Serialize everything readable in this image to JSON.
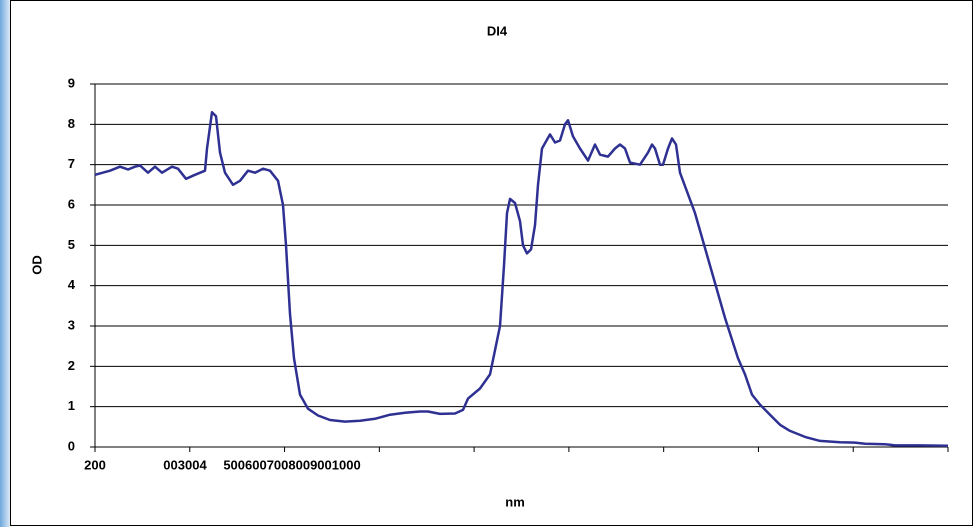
{
  "chart_data": {
    "type": "line",
    "title": "DI4",
    "x_label": "nm",
    "y_label": "OD",
    "x_labels": [
      "200",
      "003004",
      "5006007008009001000"
    ],
    "xlim": [
      0,
      853
    ],
    "ylim": [
      0,
      9
    ],
    "yticks": [
      0,
      1,
      2,
      3,
      4,
      5,
      6,
      7,
      8,
      9
    ],
    "grid": true,
    "series": [
      {
        "color": "#2e3192",
        "x": [
          0,
          15,
          25,
          33,
          40,
          45,
          53,
          60,
          67,
          77,
          83,
          91,
          100,
          110,
          112,
          117,
          121,
          125,
          130,
          138,
          145,
          153,
          160,
          168,
          175,
          183,
          188,
          191,
          195,
          199,
          205,
          213,
          223,
          235,
          250,
          265,
          280,
          295,
          310,
          325,
          333,
          345,
          360,
          368,
          373,
          385,
          395,
          400,
          405,
          409,
          412,
          415,
          420,
          425,
          428,
          432,
          436,
          440,
          443,
          447,
          455,
          460,
          465,
          470,
          473,
          478,
          485,
          493,
          500,
          505,
          513,
          520,
          525,
          530,
          535,
          545,
          553,
          557,
          560,
          565,
          568,
          573,
          577,
          581,
          585,
          600,
          615,
          630,
          643,
          650,
          657,
          665,
          675,
          685,
          695,
          710,
          725,
          745,
          760,
          770,
          790,
          800,
          825,
          853
        ],
        "values": [
          6.75,
          6.85,
          6.95,
          6.88,
          6.95,
          6.98,
          6.8,
          6.95,
          6.8,
          6.95,
          6.9,
          6.65,
          6.75,
          6.85,
          7.4,
          8.3,
          8.2,
          7.3,
          6.8,
          6.5,
          6.6,
          6.85,
          6.8,
          6.9,
          6.85,
          6.6,
          6.0,
          5.0,
          3.3,
          2.2,
          1.3,
          0.95,
          0.78,
          0.67,
          0.63,
          0.65,
          0.7,
          0.8,
          0.85,
          0.88,
          0.88,
          0.82,
          0.83,
          0.92,
          1.2,
          1.45,
          1.8,
          2.4,
          3.0,
          4.5,
          5.8,
          6.15,
          6.05,
          5.6,
          5.0,
          4.8,
          4.9,
          5.5,
          6.5,
          7.4,
          7.75,
          7.55,
          7.6,
          8.0,
          8.1,
          7.7,
          7.4,
          7.1,
          7.5,
          7.25,
          7.2,
          7.4,
          7.5,
          7.4,
          7.05,
          7.0,
          7.3,
          7.5,
          7.4,
          7.0,
          7.0,
          7.4,
          7.65,
          7.5,
          6.8,
          5.8,
          4.5,
          3.2,
          2.2,
          1.8,
          1.3,
          1.05,
          0.8,
          0.55,
          0.4,
          0.25,
          0.15,
          0.12,
          0.11,
          0.08,
          0.07,
          0.04,
          0.04,
          0.03
        ]
      }
    ]
  }
}
